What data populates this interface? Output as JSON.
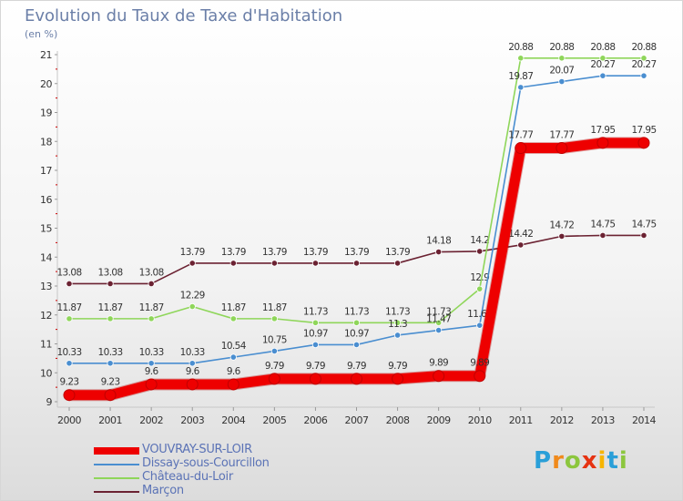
{
  "header": {
    "title": "Evolution du Taux de Taxe d'Habitation",
    "subtitle": "(en %)"
  },
  "chart_data": {
    "type": "line",
    "title": "Evolution du Taux de Taxe d'Habitation",
    "ylabel": "(en %)",
    "xlabel": "",
    "x": [
      "2000",
      "2001",
      "2002",
      "2003",
      "2004",
      "2005",
      "2006",
      "2007",
      "2008",
      "2009",
      "2010",
      "2011",
      "2012",
      "2013",
      "2014"
    ],
    "ylim": [
      9,
      21
    ],
    "yticks": [
      9,
      10,
      11,
      12,
      13,
      14,
      15,
      16,
      17,
      18,
      19,
      20,
      21
    ],
    "grid": false,
    "legend_placement": "bottom-left",
    "series": [
      {
        "name": "Marçon",
        "color": "#6b2232",
        "values": [
          13.08,
          13.08,
          13.08,
          13.79,
          13.79,
          13.79,
          13.79,
          13.79,
          13.79,
          14.18,
          14.2,
          14.42,
          14.72,
          14.75,
          14.75
        ],
        "labels": [
          "13.08",
          "13.08",
          "13.08",
          "13.79",
          "13.79",
          "13.79",
          "13.79",
          "13.79",
          "13.79",
          "14.18",
          "14.2",
          "14.42",
          "14.72",
          "14.75",
          "14.75"
        ]
      },
      {
        "name": "Château-du-Loir",
        "color": "#8fd65a",
        "values": [
          11.87,
          11.87,
          11.87,
          12.29,
          11.87,
          11.87,
          11.73,
          11.73,
          11.73,
          11.73,
          12.9,
          20.88,
          20.88,
          20.88,
          20.88
        ],
        "labels": [
          "11.87",
          "11.87",
          "11.87",
          "12.29",
          "11.87",
          "11.87",
          "11.73",
          "11.73",
          "11.73",
          "11.73",
          "12.9",
          "20.88",
          "20.88",
          "20.88",
          "20.88"
        ]
      },
      {
        "name": "Dissay-sous-Courcillon",
        "color": "#4a8ed0",
        "values": [
          10.33,
          10.33,
          10.33,
          10.33,
          10.54,
          10.75,
          10.97,
          10.97,
          11.3,
          11.47,
          11.64,
          19.87,
          20.07,
          20.27,
          20.27
        ],
        "labels": [
          "10.33",
          "10.33",
          "10.33",
          "10.33",
          "10.54",
          "10.75",
          "10.97",
          "10.97",
          "11.3",
          "11.47",
          "11.64",
          "19.87",
          "20.07",
          "20.27",
          "20.27"
        ]
      },
      {
        "name": "VOUVRAY-SUR-LOIR",
        "color": "#ee0000",
        "values": [
          9.23,
          9.23,
          9.6,
          9.6,
          9.6,
          9.79,
          9.79,
          9.79,
          9.79,
          9.89,
          9.89,
          17.77,
          17.77,
          17.95,
          17.95
        ],
        "labels": [
          "9.23",
          "9.23",
          "9.6",
          "9.6",
          "9.6",
          "9.79",
          "9.79",
          "9.79",
          "9.79",
          "9.89",
          "9.89",
          "17.77",
          "17.77",
          "17.95",
          "17.95"
        ]
      }
    ]
  },
  "legend": {
    "items": [
      {
        "label": "VOUVRAY-SUR-LOIR",
        "color": "#ee0000"
      },
      {
        "label": "Dissay-sous-Courcillon",
        "color": "#4a8ed0"
      },
      {
        "label": "Château-du-Loir",
        "color": "#8fd65a"
      },
      {
        "label": "Marçon",
        "color": "#6b2232"
      }
    ]
  },
  "brand": {
    "letters": [
      "P",
      "r",
      "o",
      "x",
      "i",
      "t",
      "i"
    ],
    "colors": [
      "#2a9fd8",
      "#f08a1c",
      "#8cc63e",
      "#e63312",
      "#f7b500",
      "#2a9fd8",
      "#8cc63e"
    ]
  }
}
